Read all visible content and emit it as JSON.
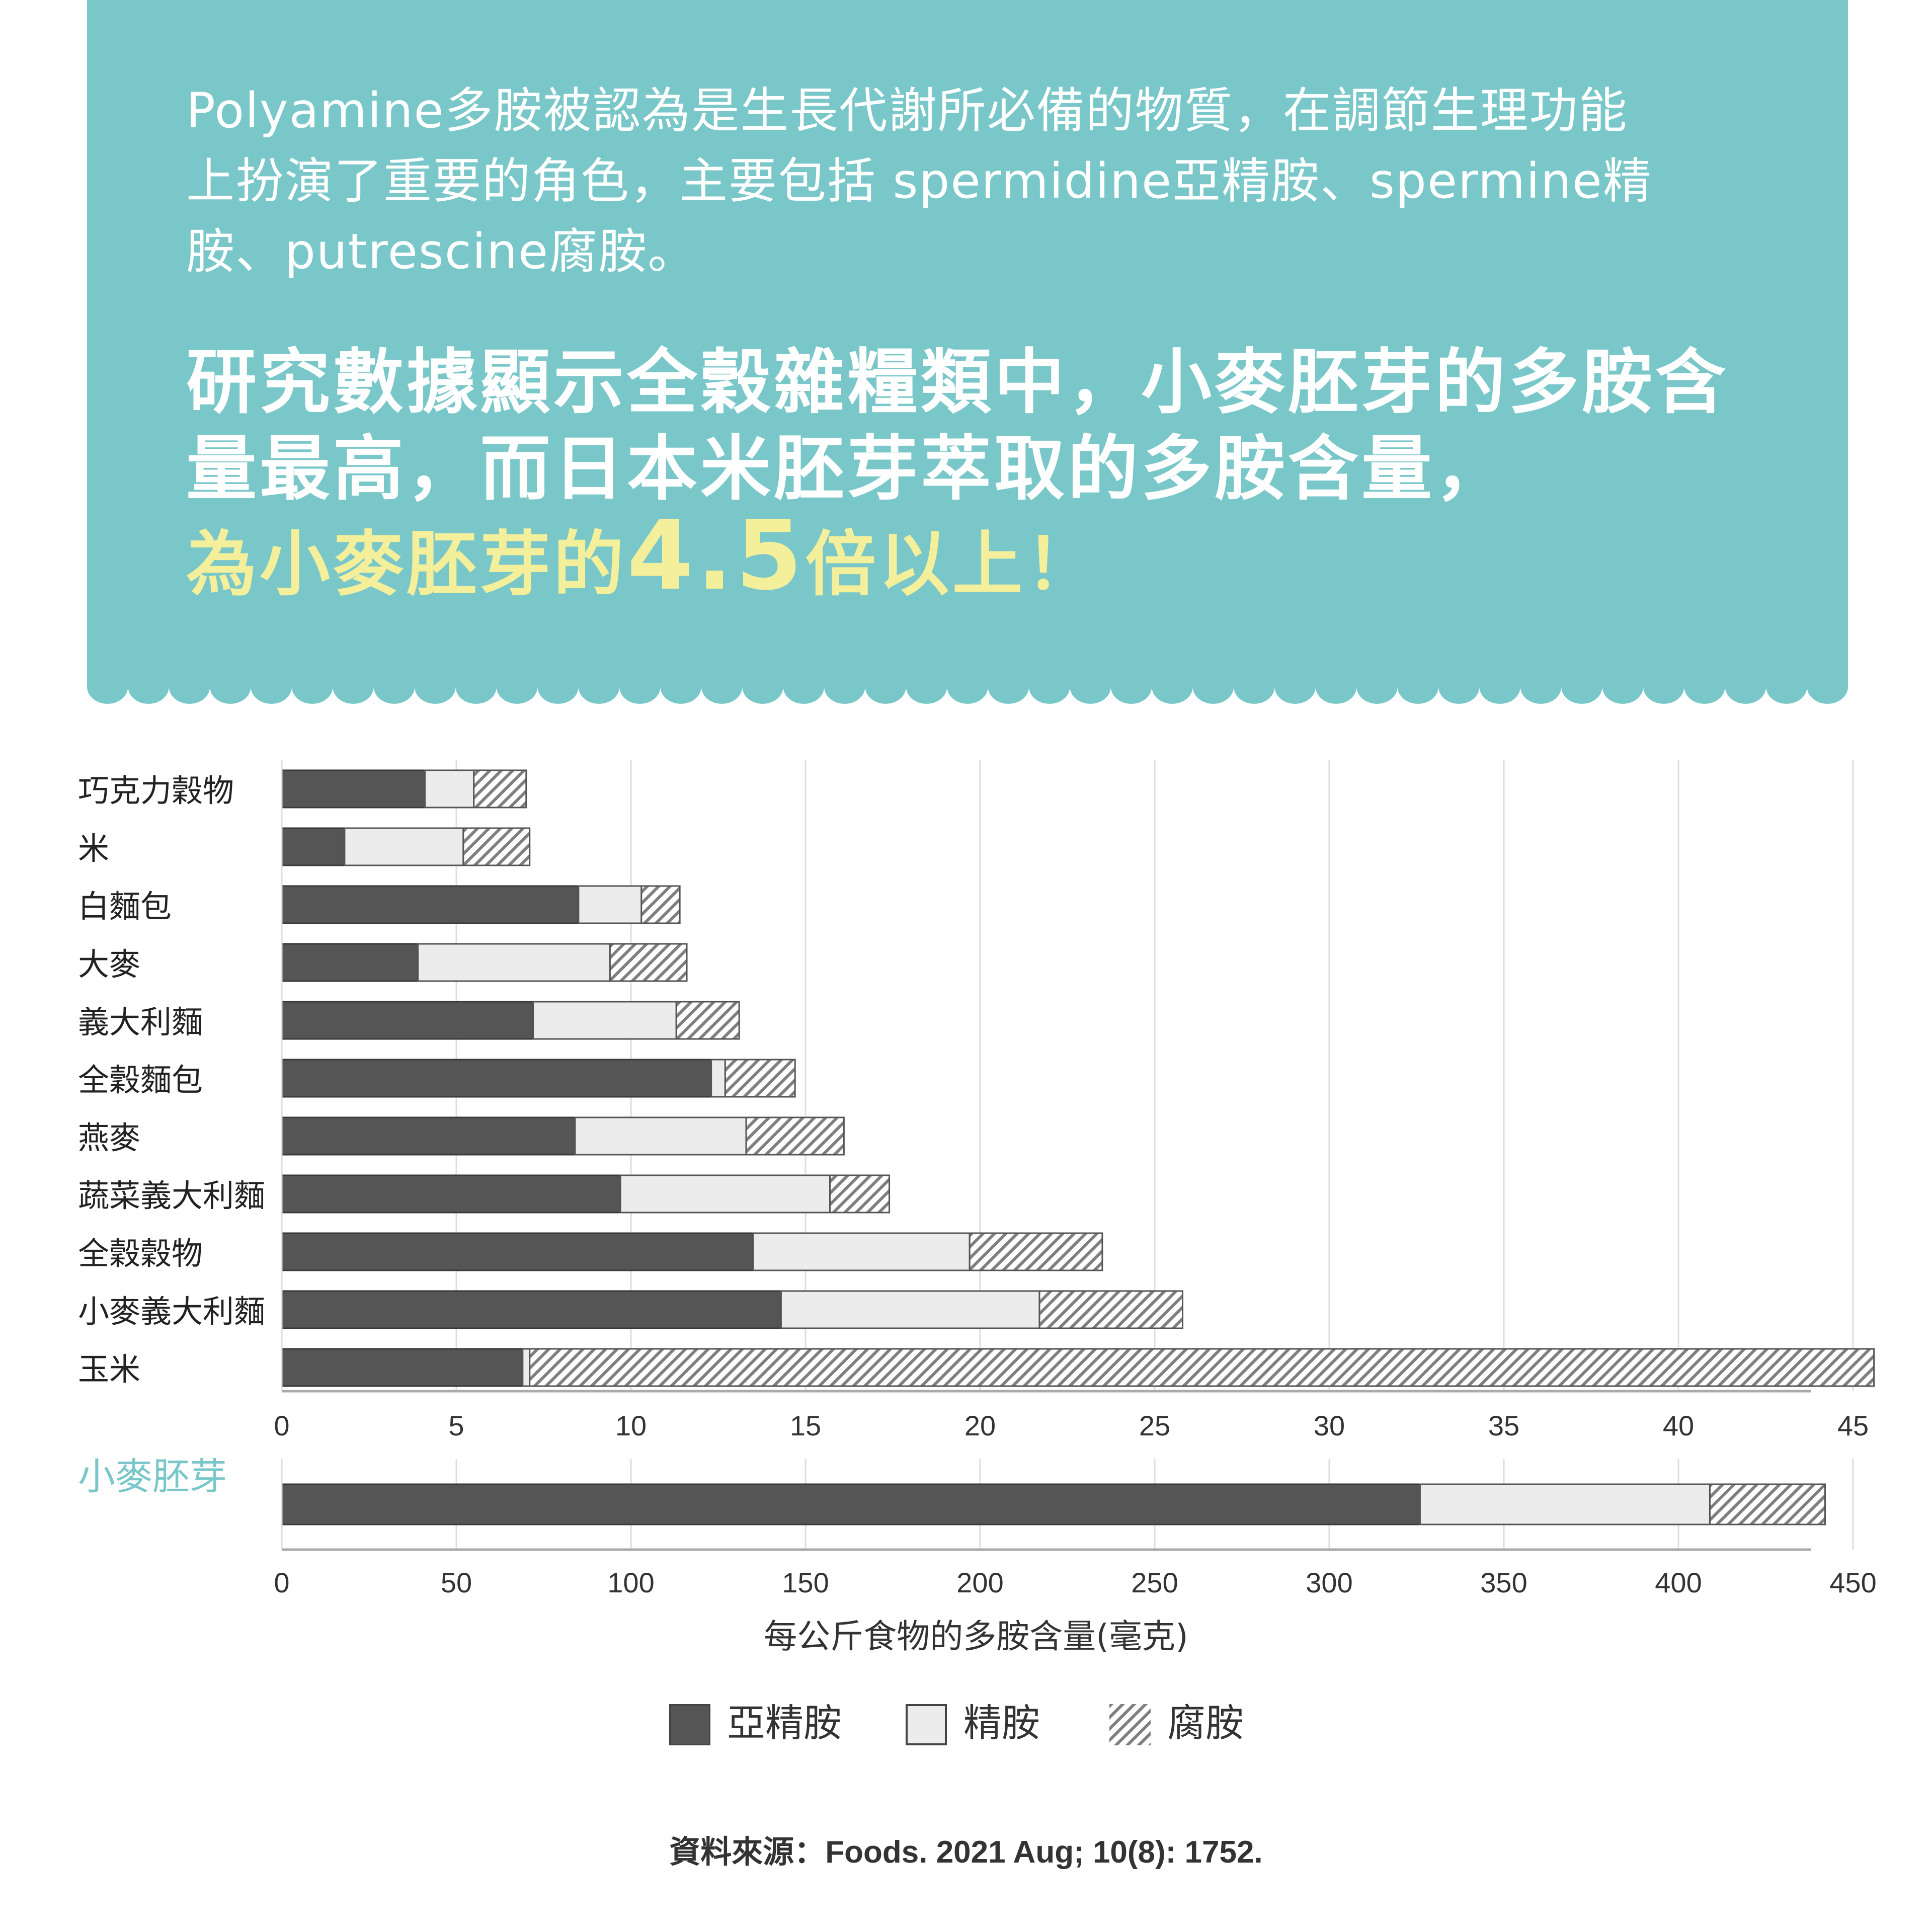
{
  "header": {
    "intro_line1": "Polyamine多胺被認為是生長代謝所必備的物質，在調節生理功能",
    "intro_line2": "上扮演了重要的角色，主要包括 spermidine亞精胺、spermine精",
    "intro_line3": "胺、putrescine腐胺。",
    "headline_line1": "研究數據顯示全穀雜糧類中，小麥胚芽的多胺含",
    "headline_line2": "量最高，而日本米胚芽萃取的多胺含量，",
    "highlight_prefix": "為小麥胚芽的",
    "highlight_number": "4.5",
    "highlight_suffix": "倍以上！"
  },
  "colors": {
    "banner": "#79c7c9",
    "highlight": "#f3ef9a",
    "spermidine": "#555555",
    "spermine": "#ececec",
    "putrescine_hatch": "#808080",
    "wheat_germ_label": "#79c7c9"
  },
  "chart_data": [
    {
      "type": "bar",
      "orientation": "horizontal",
      "stacked": true,
      "categories": [
        "巧克力穀物",
        "米",
        "白麵包",
        "大麥",
        "義大利麵",
        "全穀麵包",
        "燕麥",
        "蔬菜義大利麵",
        "全穀穀物",
        "小麥義大利麵",
        "玉米"
      ],
      "series": [
        {
          "name": "亞精胺",
          "values": [
            4.1,
            1.8,
            8.5,
            3.9,
            7.2,
            12.3,
            8.4,
            9.7,
            13.5,
            14.3,
            6.9
          ]
        },
        {
          "name": "精胺",
          "values": [
            1.4,
            3.4,
            1.8,
            5.5,
            4.1,
            0.4,
            4.9,
            6.0,
            6.2,
            7.4,
            0.2
          ]
        },
        {
          "name": "腐胺",
          "values": [
            1.5,
            1.9,
            1.1,
            2.2,
            1.8,
            2.0,
            2.8,
            1.7,
            3.8,
            4.1,
            38.5
          ]
        }
      ],
      "xlim": [
        0,
        48
      ],
      "xticks": [
        0,
        5,
        10,
        15,
        20,
        25,
        30,
        35,
        40,
        45
      ],
      "grid": true
    },
    {
      "type": "bar",
      "orientation": "horizontal",
      "stacked": true,
      "categories": [
        "小麥胚芽"
      ],
      "series": [
        {
          "name": "亞精胺",
          "values": [
            326
          ]
        },
        {
          "name": "精胺",
          "values": [
            83
          ]
        },
        {
          "name": "腐胺",
          "values": [
            33
          ]
        }
      ],
      "xlim": [
        0,
        485
      ],
      "xticks": [
        0,
        50,
        100,
        150,
        200,
        250,
        300,
        350,
        400,
        450
      ],
      "xlabel": "每公斤食物的多胺含量(毫克)",
      "grid": true
    }
  ],
  "legend": {
    "items": [
      {
        "label": "亞精胺"
      },
      {
        "label": "精胺"
      },
      {
        "label": "腐胺"
      }
    ]
  },
  "source": "資料來源：Foods. 2021 Aug; 10(8): 1752."
}
